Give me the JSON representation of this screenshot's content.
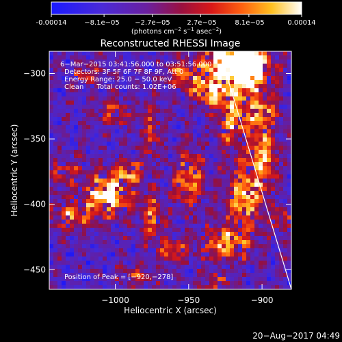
{
  "colorbar": {
    "tick_labels": [
      "-0.00014",
      "−8.1e−05",
      "−2.7e−05",
      "2.7e−05",
      "8.1e−05",
      "0.00014"
    ],
    "tick_values": [
      -0.00014,
      -8.1e-05,
      -2.7e-05,
      2.7e-05,
      8.1e-05,
      0.00014
    ],
    "units_parts": [
      "(photons cm",
      "−2",
      " s",
      "−1",
      " asec",
      "−2",
      ")"
    ],
    "range": [
      -0.00014,
      0.00014
    ],
    "colormap": "blue-purple-red-yellow-white"
  },
  "chart_data": {
    "type": "heatmap",
    "title": "Reconstructed RHESSI Image",
    "xlabel": "Heliocentric X (arcsec)",
    "ylabel": "Heliocentric Y (arcsec)",
    "xlim": [
      -1045,
      -880
    ],
    "ylim": [
      -465,
      -283
    ],
    "x_ticks": [
      -1000,
      -950,
      -900
    ],
    "x_tick_labels": [
      "−1000",
      "−950",
      "−900"
    ],
    "y_ticks": [
      -450,
      -400,
      -350,
      -300
    ],
    "y_tick_labels": [
      "−450",
      "−400",
      "−350",
      "−300"
    ],
    "annotations": [
      "6−Mar−2015 03:41:56.000 to 03:51:56.000",
      "Detectors: 3F 5F 6F 7F 8F 9F, Att 0",
      "Energy Range: 25.0 − 50.0 keV",
      "Clean      Total counts: 1.02E+06"
    ],
    "peak_label": "Position of Peak = [−920,−278]",
    "peak": [
      -920,
      -278
    ],
    "limb_line": [
      [
        -929,
        -283
      ],
      [
        -880,
        -465
      ]
    ],
    "value_range": [
      -0.00014,
      0.00014
    ]
  },
  "footer": {
    "timestamp": "20−Aug−2017 04:49"
  },
  "colors": {
    "background": "#000000",
    "text": "#ffffff",
    "limb": "#ffffff"
  }
}
